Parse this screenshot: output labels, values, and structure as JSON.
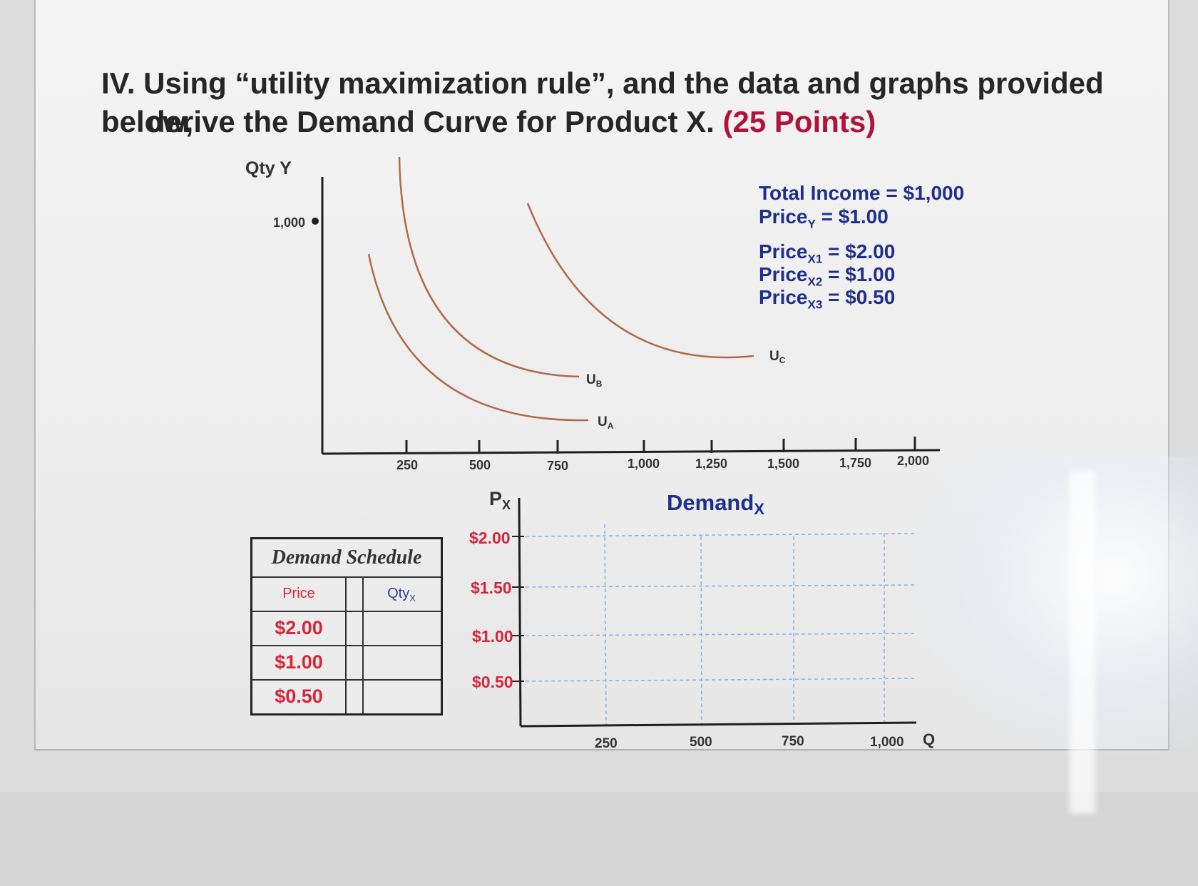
{
  "question": {
    "line1": "IV. Using “utility maximization rule”, and the data and graphs provided below,",
    "line2": "derive the Demand Curve for Product X.",
    "points": "(25 Points)"
  },
  "top_graph": {
    "y_axis_label": "Qty Y",
    "y_tick_label": "1,000",
    "x_tick_labels": [
      "250",
      "500",
      "750",
      "1,000",
      "1,250",
      "1,500",
      "1,750",
      "2,000"
    ],
    "curve_labels": {
      "ua": "UA",
      "ub": "UB",
      "uc": "UC"
    },
    "curve_label_main": "U",
    "curve_label_subs": {
      "ua": "A",
      "ub": "B",
      "uc": "C"
    },
    "curve_color": "#b06a4a"
  },
  "info": {
    "income": "Total Income = $1,000",
    "price_y_prefix": "Price",
    "price_y_sub": "Y",
    "price_y_value": " = $1.00",
    "price_x1_prefix": "Price",
    "price_x1_sub": "X1",
    "price_x1_value": " = $2.00",
    "price_x2_prefix": "Price",
    "price_x2_sub": "X2",
    "price_x2_value": " = $1.00",
    "price_x3_prefix": "Price",
    "price_x3_sub": "X3",
    "price_x3_value": " = $0.50",
    "text_color": "#1f2f8e"
  },
  "demand_schedule": {
    "title": "Demand Schedule",
    "header_price": "Price",
    "header_qty": "Qty",
    "header_qty_sub": "X",
    "prices": [
      "$2.00",
      "$1.00",
      "$0.50"
    ],
    "qtys": [
      "",
      "",
      ""
    ]
  },
  "demand_graph": {
    "title_main": "Demand",
    "title_sub": "X",
    "y_axis_main": "P",
    "y_axis_sub": "X",
    "y_tick_labels": [
      "$2.00",
      "$1.50",
      "$1.00",
      "$0.50"
    ],
    "x_tick_labels": [
      "250",
      "500",
      "750",
      "1,000"
    ],
    "x_axis_label": "Q",
    "price_color": "#d8253a",
    "grid_color": "#8fb0d8"
  }
}
